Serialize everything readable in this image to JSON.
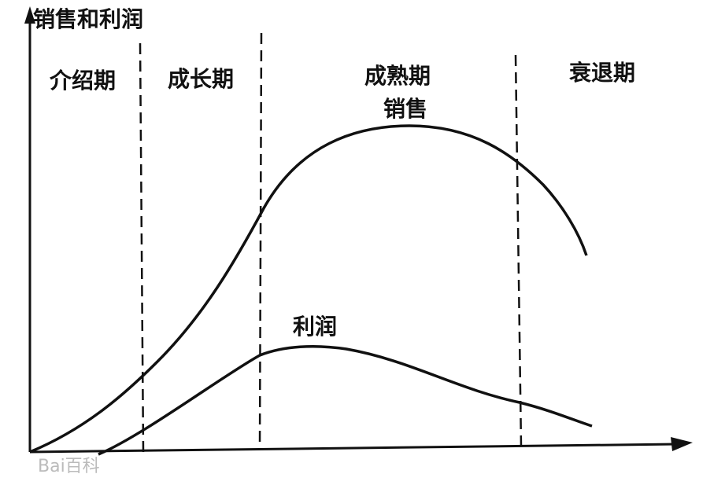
{
  "axis_label": "销售和利润",
  "stages": [
    "介绍期",
    "成长期",
    "成熟期",
    "衰退期"
  ],
  "curves": {
    "sales": "销售",
    "profit": "利润"
  },
  "watermark": "Bai百科"
}
